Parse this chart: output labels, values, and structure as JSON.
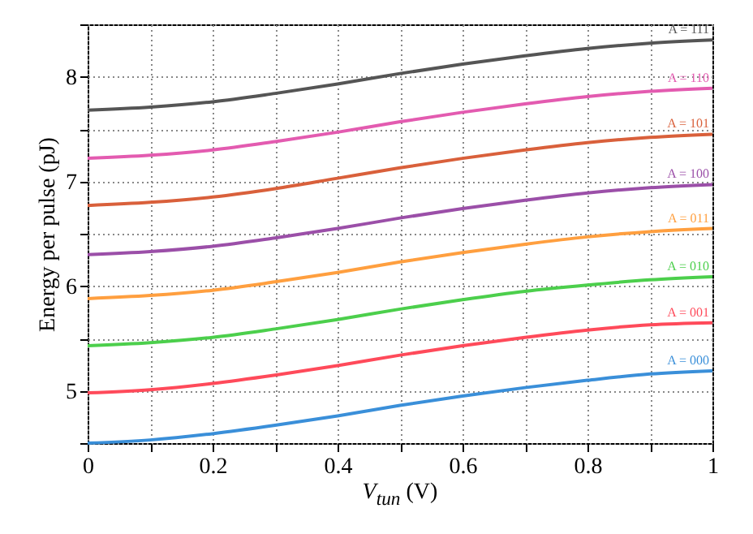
{
  "chart_data": {
    "type": "line",
    "xlabel": "V$_{tun}$ (V)",
    "ylabel": "Energy per pulse (pJ)",
    "x": [
      0,
      0.1,
      0.2,
      0.3,
      0.4,
      0.5,
      0.6,
      0.7,
      0.8,
      0.9,
      1
    ],
    "xlim": [
      0,
      1
    ],
    "xticks": [
      0,
      {
        "value": 0.1,
        "label": null
      },
      0.2,
      {
        "value": 0.3,
        "label": null
      },
      0.4,
      {
        "value": 0.5,
        "label": null
      },
      0.6,
      {
        "value": 0.7,
        "label": null
      },
      0.8,
      {
        "value": 0.9,
        "label": null
      },
      1
    ],
    "ylim": [
      4.5,
      8.5
    ],
    "yticks": [
      {
        "value": 4.5,
        "label": null
      },
      5,
      {
        "value": 5.5,
        "label": null
      },
      6,
      {
        "value": 6.5,
        "label": null
      },
      7,
      {
        "value": 7.5,
        "label": null
      },
      8,
      {
        "value": 8.5,
        "label": null
      }
    ],
    "grid": true,
    "line_style": "solid",
    "marker": "none",
    "series": [
      {
        "name": "A = 111",
        "color": "#555555",
        "values": [
          7.68,
          7.71,
          7.76,
          7.84,
          7.93,
          8.03,
          8.12,
          8.2,
          8.27,
          8.32,
          8.35
        ]
      },
      {
        "name": "A = 110",
        "color": "#e35bb0",
        "values": [
          7.22,
          7.25,
          7.3,
          7.38,
          7.47,
          7.57,
          7.66,
          7.74,
          7.81,
          7.86,
          7.89
        ]
      },
      {
        "name": "A = 101",
        "color": "#d9603b",
        "values": [
          6.77,
          6.8,
          6.85,
          6.93,
          7.03,
          7.13,
          7.22,
          7.3,
          7.37,
          7.42,
          7.45
        ]
      },
      {
        "name": "A = 100",
        "color": "#9b4fa8",
        "values": [
          6.3,
          6.33,
          6.38,
          6.46,
          6.55,
          6.65,
          6.74,
          6.82,
          6.89,
          6.94,
          6.97
        ]
      },
      {
        "name": "A = 011",
        "color": "#ff9f3f",
        "values": [
          5.88,
          5.91,
          5.96,
          6.04,
          6.13,
          6.23,
          6.32,
          6.4,
          6.47,
          6.52,
          6.55
        ]
      },
      {
        "name": "A = 010",
        "color": "#4ccf4c",
        "values": [
          5.43,
          5.46,
          5.51,
          5.59,
          5.68,
          5.78,
          5.87,
          5.95,
          6.01,
          6.06,
          6.09
        ]
      },
      {
        "name": "A = 001",
        "color": "#ff4a5a",
        "values": [
          4.98,
          5.01,
          5.07,
          5.15,
          5.24,
          5.34,
          5.43,
          5.51,
          5.58,
          5.63,
          5.65
        ]
      },
      {
        "name": "A = 000",
        "color": "#3a8fd9",
        "values": [
          4.5,
          4.53,
          4.59,
          4.67,
          4.76,
          4.86,
          4.95,
          5.03,
          5.1,
          5.16,
          5.19
        ]
      }
    ]
  }
}
